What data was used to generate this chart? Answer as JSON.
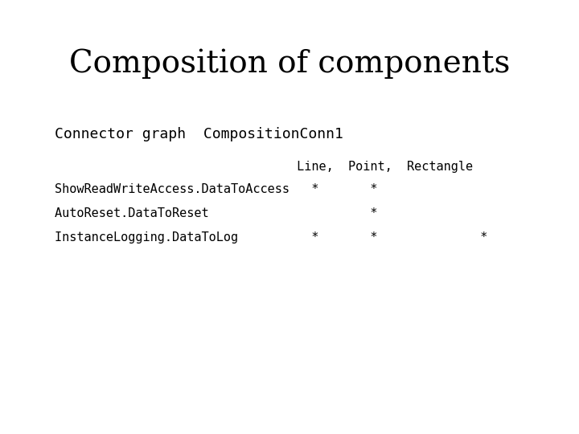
{
  "title": "Composition of components",
  "title_fontsize": 28,
  "title_font": "serif",
  "subtitle": "Connector graph  CompositionConn1",
  "subtitle_fontsize": 13,
  "subtitle_font": "monospace",
  "header_line": "                                 Line,  Point,  Rectangle",
  "rows": [
    "ShowReadWriteAccess.DataToAccess   *       *",
    "AutoReset.DataToReset                      *",
    "InstanceLogging.DataToLog          *       *              *"
  ],
  "mono_fontsize": 11,
  "mono_font": "monospace",
  "background_color": "#ffffff",
  "text_color": "#000000"
}
